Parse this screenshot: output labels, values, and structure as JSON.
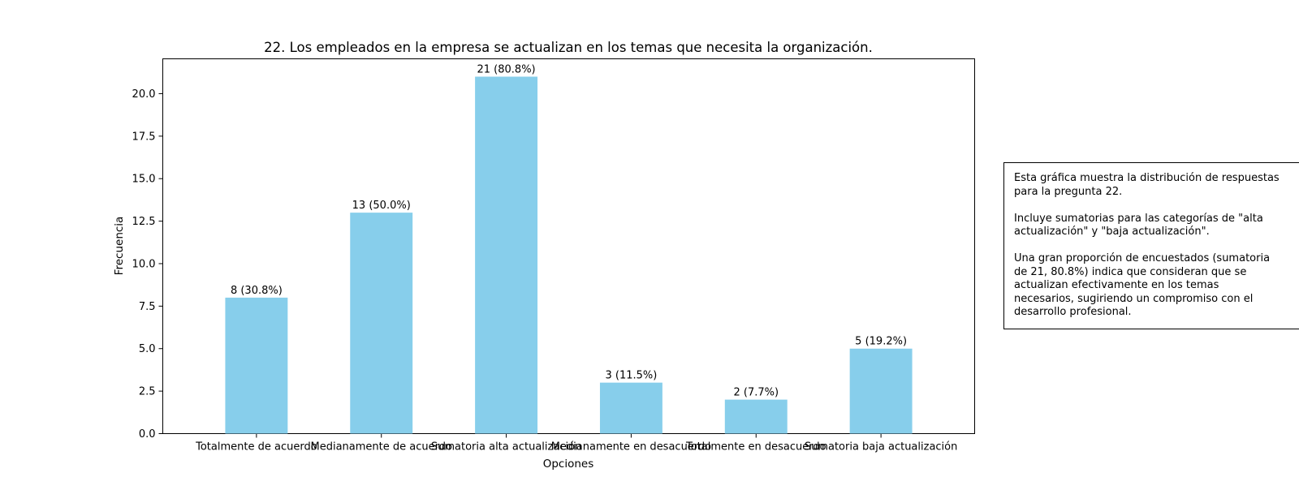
{
  "chart_data": {
    "type": "bar",
    "title": "22. Los empleados en la empresa se actualizan en los temas que necesita la organización.",
    "xlabel": "Opciones",
    "ylabel": "Frecuencia",
    "categories": [
      "Totalmente de acuerdo",
      "Medianamente de acuerdo",
      "Sumatoria alta actualización",
      "Medianamente en desacuerdo",
      "Totalmente en desacuerdo",
      "Sumatoria baja actualización"
    ],
    "values": [
      8,
      13,
      21,
      3,
      2,
      5
    ],
    "data_labels": [
      "8 (30.8%)",
      "13 (50.0%)",
      "21 (80.8%)",
      "3 (11.5%)",
      "2 (7.7%)",
      "5 (19.2%)"
    ],
    "ylim": [
      0,
      22.05
    ],
    "yticks": [
      "0.0",
      "2.5",
      "5.0",
      "7.5",
      "10.0",
      "12.5",
      "15.0",
      "17.5",
      "20.0"
    ],
    "bar_color": "#87ceeb",
    "grid": false,
    "legend": "none"
  },
  "note": {
    "lines": [
      "Esta gráfica muestra la distribución de respuestas",
      "para la pregunta 22.",
      "",
      "Incluye sumatorias para las categorías de \"alta",
      "actualización\" y \"baja actualización\".",
      "",
      "Una gran proporción de encuestados (sumatoria",
      "de 21, 80.8%) indica que consideran que se",
      "actualizan efectivamente en los temas",
      "necesarios, sugiriendo un compromiso con el",
      "desarrollo profesional."
    ]
  }
}
